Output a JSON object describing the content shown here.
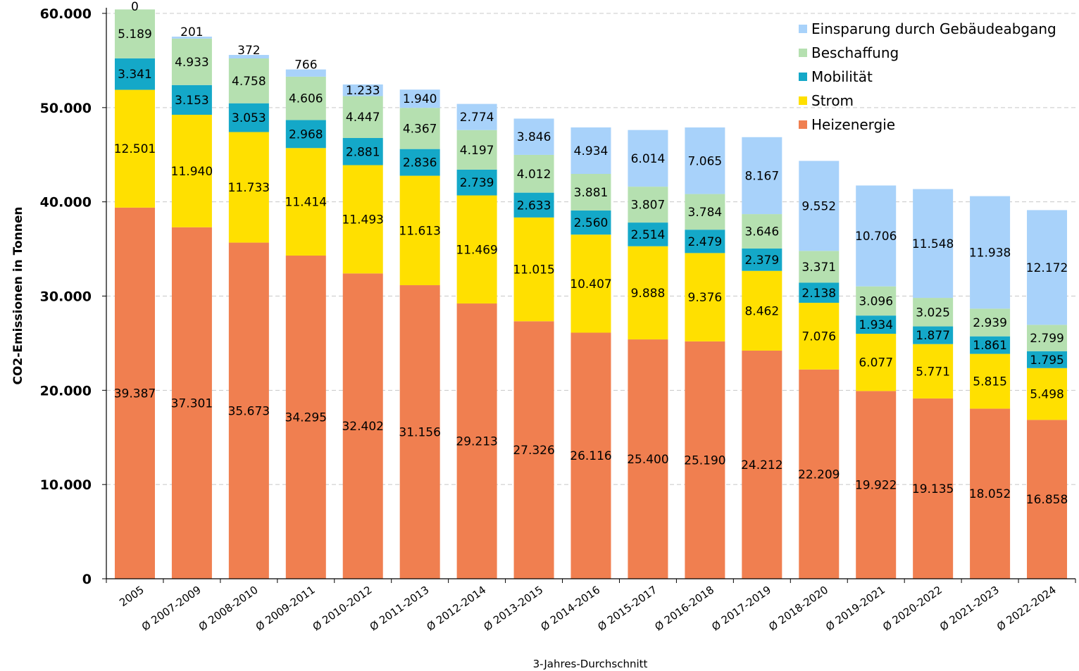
{
  "chart_data": {
    "type": "bar",
    "stacked": true,
    "title": "",
    "xlabel": "3-Jahres-Durchschnitt",
    "ylabel": "CO2-Emissionen in Tonnen",
    "ylim": [
      0,
      60000
    ],
    "yticks": [
      "0",
      "10.000",
      "20.000",
      "30.000",
      "40.000",
      "50.000",
      "60.000"
    ],
    "grid": "horizontal dashed",
    "legend_position": "top-right",
    "categories": [
      "2005",
      "Ø 2007-2009",
      "Ø 2008-2010",
      "Ø 2009-2011",
      "Ø 2010-2012",
      "Ø 2011-2013",
      "Ø 2012-2014",
      "Ø 2013-2015",
      "Ø 2014-2016",
      "Ø 2015-2017",
      "Ø 2016-2018",
      "Ø 2017-2019",
      "Ø 2018-2020",
      "Ø 2019-2021",
      "Ø 2020-2022",
      "Ø 2021-2023",
      "Ø 2022-2024"
    ],
    "series": [
      {
        "name": "Heizenergie",
        "color": "#F07F50",
        "values": [
          39387,
          37301,
          35673,
          34295,
          32402,
          31156,
          29213,
          27326,
          26116,
          25400,
          25190,
          24212,
          22209,
          19922,
          19135,
          18052,
          16858
        ],
        "labels": [
          "39.387",
          "37.301",
          "35.673",
          "34.295",
          "32.402",
          "31.156",
          "29.213",
          "27.326",
          "26.116",
          "25.400",
          "25.190",
          "24.212",
          "22.209",
          "19.922",
          "19.135",
          "18.052",
          "16.858"
        ]
      },
      {
        "name": "Strom",
        "color": "#FFE000",
        "values": [
          12501,
          11940,
          11733,
          11414,
          11493,
          11613,
          11469,
          11015,
          10407,
          9888,
          9376,
          8462,
          7076,
          6077,
          5771,
          5815,
          5498
        ],
        "labels": [
          "12.501",
          "11.940",
          "11.733",
          "11.414",
          "11.493",
          "11.613",
          "11.469",
          "11.015",
          "10.407",
          "9.888",
          "9.376",
          "8.462",
          "7.076",
          "6.077",
          "5.771",
          "5.815",
          "5.498"
        ]
      },
      {
        "name": "Mobilität",
        "color": "#14A8C8",
        "values": [
          3341,
          3153,
          3053,
          2968,
          2881,
          2836,
          2739,
          2633,
          2560,
          2514,
          2479,
          2379,
          2138,
          1934,
          1877,
          1861,
          1795
        ],
        "labels": [
          "3.341",
          "3.153",
          "3.053",
          "2.968",
          "2.881",
          "2.836",
          "2.739",
          "2.633",
          "2.560",
          "2.514",
          "2.479",
          "2.379",
          "2.138",
          "1.934",
          "1.877",
          "1.861",
          "1.795"
        ]
      },
      {
        "name": "Beschaffung",
        "color": "#B5E0B0",
        "values": [
          5189,
          4933,
          4758,
          4606,
          4447,
          4367,
          4197,
          4012,
          3881,
          3807,
          3784,
          3646,
          3371,
          3096,
          3025,
          2939,
          2799
        ],
        "labels": [
          "5.189",
          "4.933",
          "4.758",
          "4.606",
          "4.447",
          "4.367",
          "4.197",
          "4.012",
          "3.881",
          "3.807",
          "3.784",
          "3.646",
          "3.371",
          "3.096",
          "3.025",
          "2.939",
          "2.799"
        ]
      },
      {
        "name": "Einsparung durch Gebäudeabgang",
        "color": "#A8D2FA",
        "values": [
          0,
          201,
          372,
          766,
          1233,
          1940,
          2774,
          3846,
          4934,
          6014,
          7065,
          8167,
          9552,
          10706,
          11548,
          11938,
          12172
        ],
        "labels": [
          "0",
          "201",
          "372",
          "766",
          "1.233",
          "1.940",
          "2.774",
          "3.846",
          "4.934",
          "6.014",
          "7.065",
          "8.167",
          "9.552",
          "10.706",
          "11.548",
          "11.938",
          "12.172"
        ]
      }
    ]
  }
}
